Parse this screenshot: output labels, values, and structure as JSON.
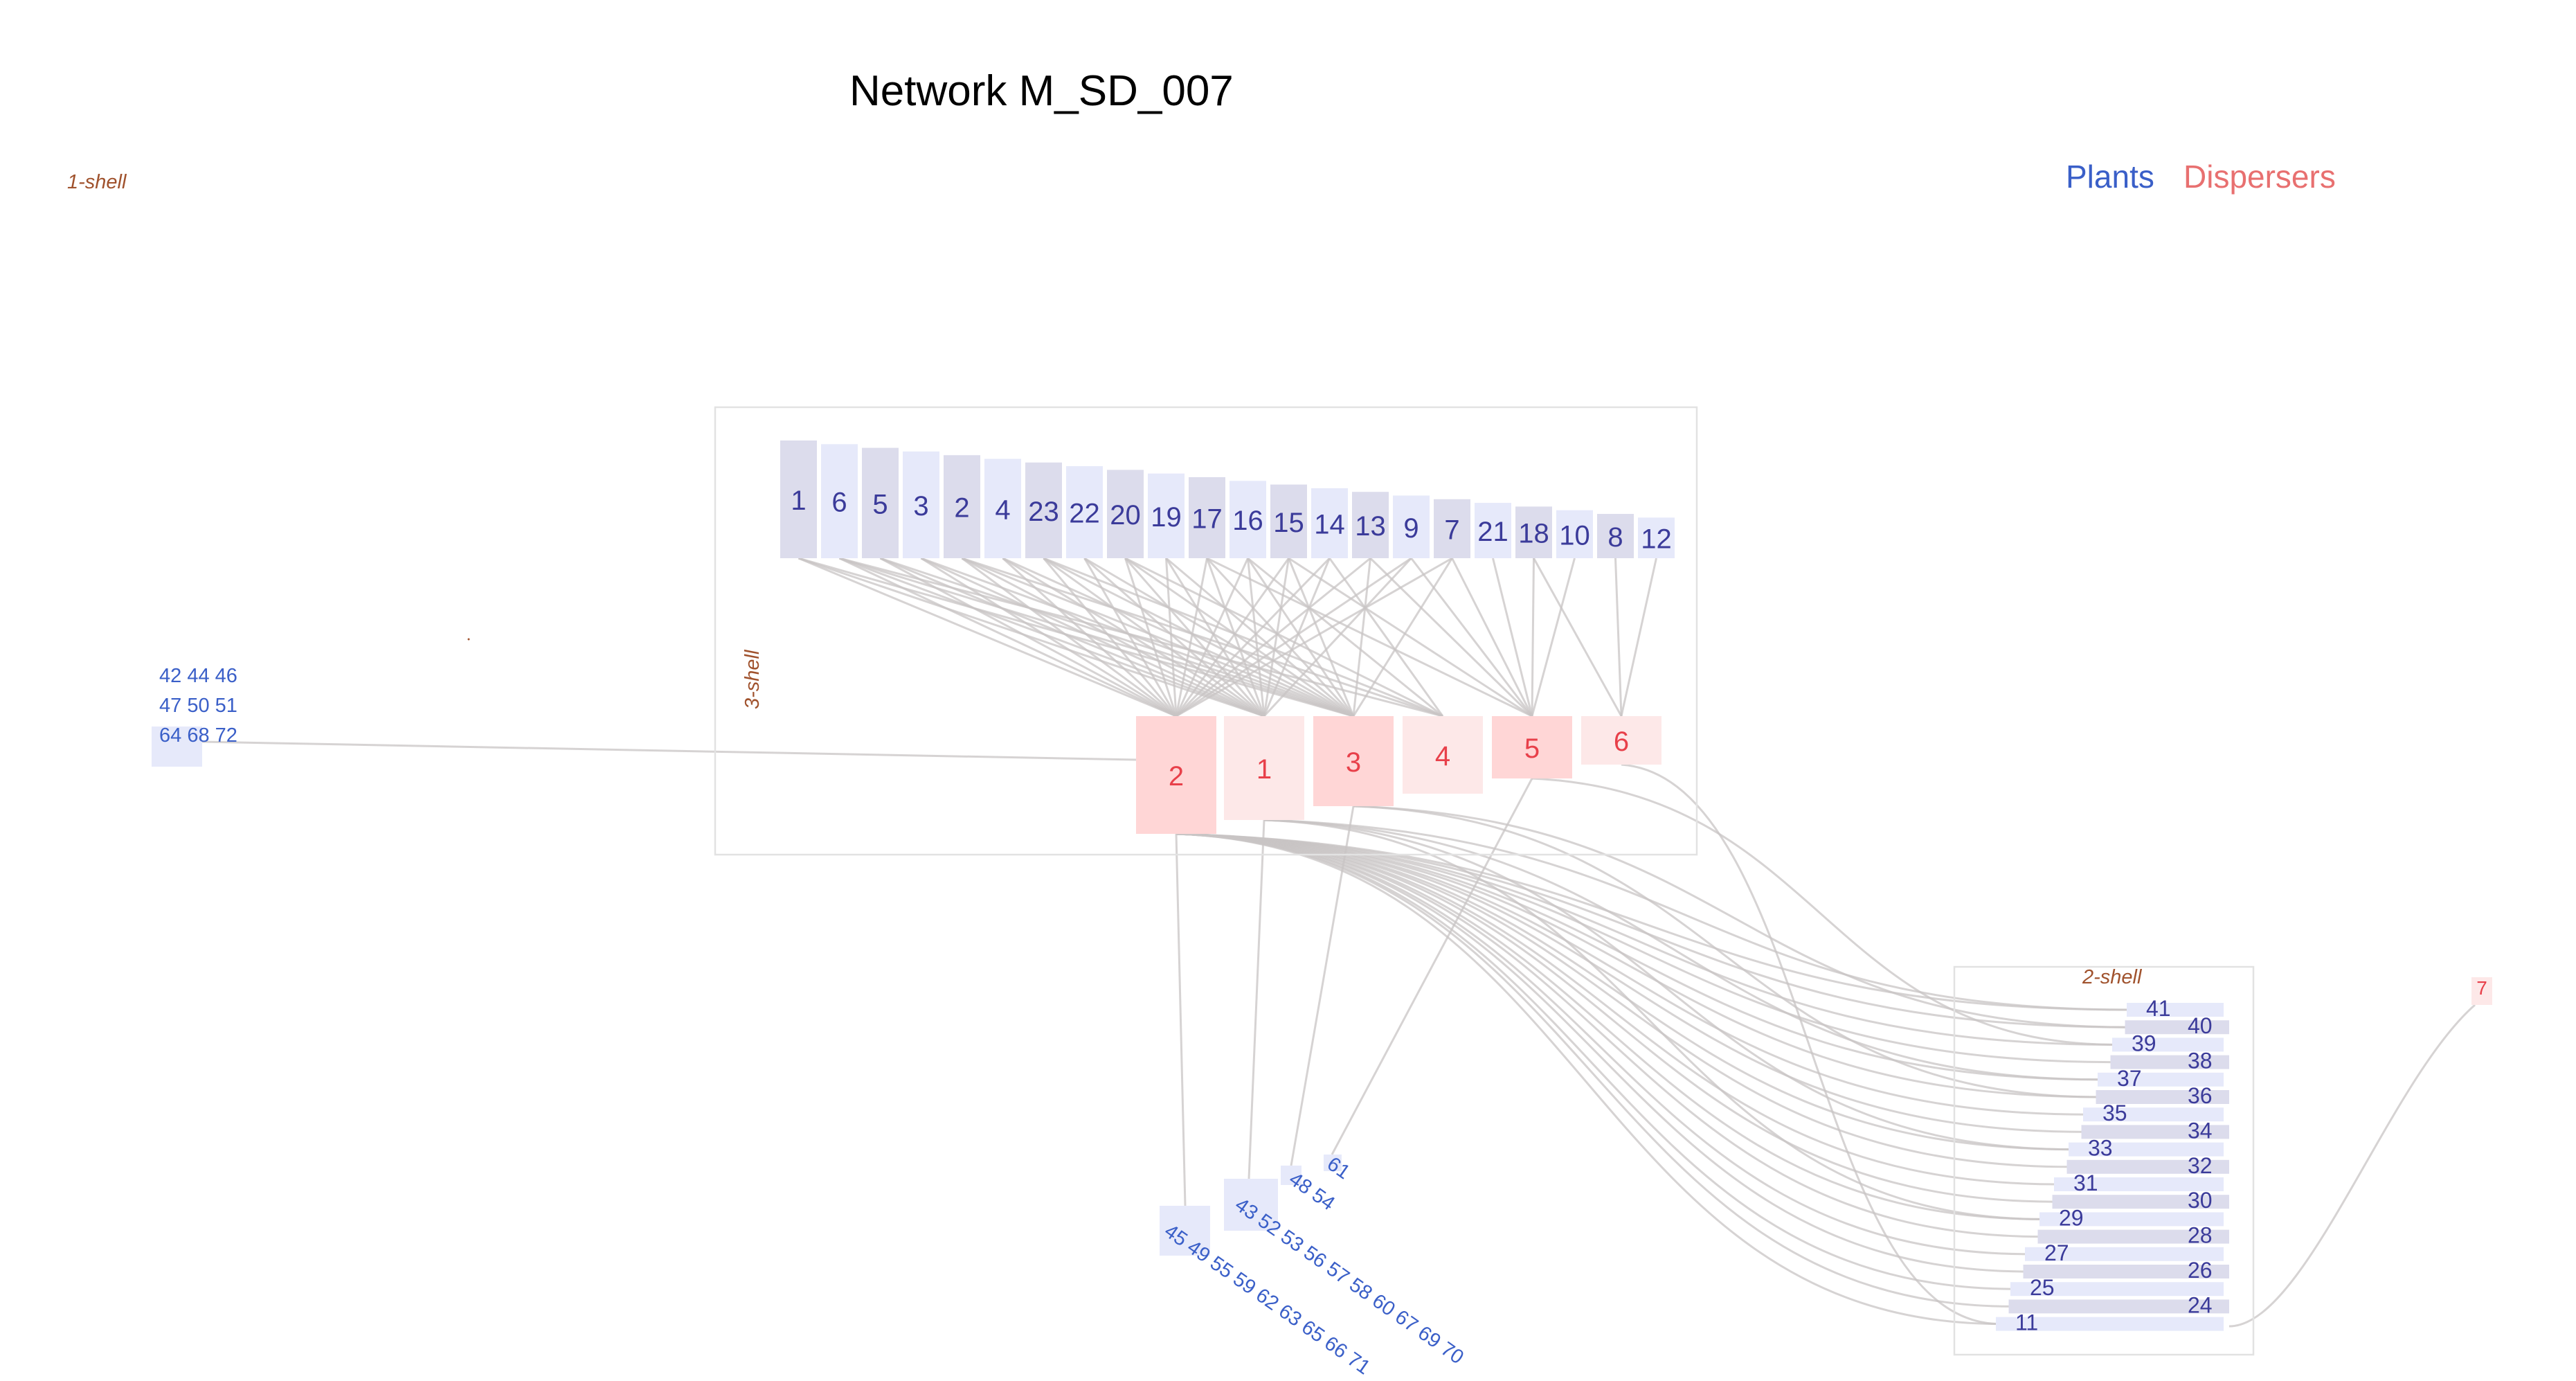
{
  "title": "Network M_SD_007",
  "legend": {
    "plants": "Plants",
    "dispersers": "Dispersers",
    "plants_color": "#3a5fc8",
    "dispersers_color": "#e87070"
  },
  "shells": {
    "one": "1-shell",
    "two": "2-shell",
    "three": "3-shell"
  },
  "colors": {
    "plant_dark": "#dcdcec",
    "plant_light": "#e6e9fa",
    "disperser_dark": "#ffd6d6",
    "disperser_light": "#fde8e8",
    "link": "#c8c4c4",
    "shell_label": "#a0522d"
  },
  "core_plants": [
    "1",
    "6",
    "5",
    "3",
    "2",
    "4",
    "23",
    "22",
    "20",
    "19",
    "17",
    "16",
    "15",
    "14",
    "13",
    "9",
    "7",
    "21",
    "18",
    "10",
    "8",
    "12"
  ],
  "core_dispersers": [
    "2",
    "1",
    "3",
    "4",
    "5",
    "6"
  ],
  "shell2_plants_left": [
    "41",
    "39",
    "37",
    "35",
    "33",
    "31",
    "29",
    "27",
    "25",
    "11"
  ],
  "shell2_plants_right": [
    "40",
    "38",
    "36",
    "34",
    "32",
    "30",
    "28",
    "26",
    "24"
  ],
  "isolated_disperser": "7",
  "shell1_plant_rows": [
    "42 44 46",
    "47 50 51",
    "64 68 72"
  ],
  "tail_groups": [
    "45 49 55 59 62 63 65 66 71",
    "43 52 53 56 57 58 60 67 69 70",
    "48 54",
    "61"
  ]
}
